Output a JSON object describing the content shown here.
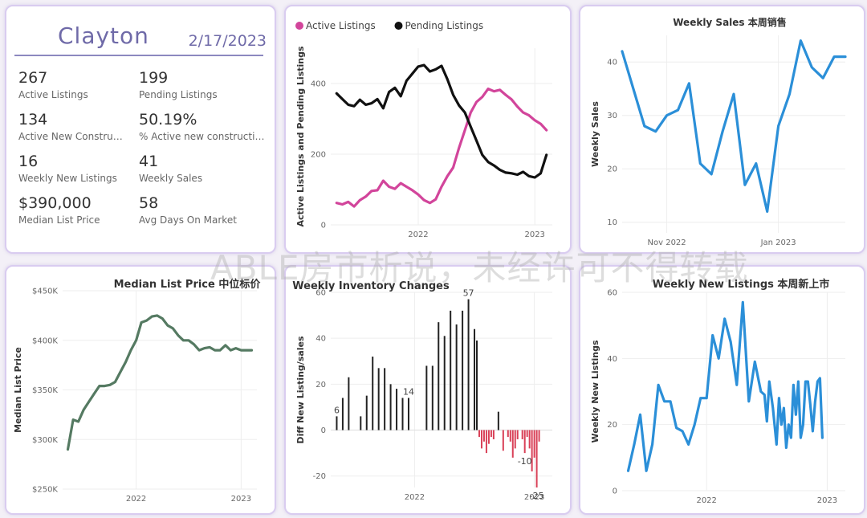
{
  "kpi": {
    "city": "Clayton",
    "date": "2/17/2023",
    "items": [
      {
        "value": "267",
        "label": "Active Listings"
      },
      {
        "value": "199",
        "label": "Pending Listings"
      },
      {
        "value": "134",
        "label": "Active New Construction Listings"
      },
      {
        "value": "50.19%",
        "label": "% Active new constructions"
      },
      {
        "value": "16",
        "label": "Weekly New Listings"
      },
      {
        "value": "41",
        "label": "Weekly Sales"
      },
      {
        "value": "$390,000",
        "label": "Median List Price"
      },
      {
        "value": "58",
        "label": "Avg Days On Market"
      }
    ]
  },
  "watermark": "ABLE房市析说，未经许可不得转载",
  "chart_data": [
    {
      "id": "listings",
      "type": "line",
      "title": "",
      "ylabel": "Active Listings and Pending Listings",
      "ylim": [
        0,
        500
      ],
      "yticks": [
        0,
        200,
        400
      ],
      "xlim": [
        2021.25,
        2023.15
      ],
      "xticks": [
        {
          "v": 2022,
          "label": "2022"
        },
        {
          "v": 2023,
          "label": "2023"
        }
      ],
      "series": [
        {
          "name": "Active Listings",
          "color": "#d2459b",
          "x": [
            2021.3,
            2021.35,
            2021.4,
            2021.45,
            2021.5,
            2021.55,
            2021.6,
            2021.65,
            2021.7,
            2021.75,
            2021.8,
            2021.85,
            2021.9,
            2021.95,
            2022.0,
            2022.05,
            2022.1,
            2022.15,
            2022.2,
            2022.25,
            2022.3,
            2022.35,
            2022.4,
            2022.45,
            2022.5,
            2022.55,
            2022.6,
            2022.65,
            2022.7,
            2022.75,
            2022.8,
            2022.85,
            2022.9,
            2022.95,
            2023.0,
            2023.05,
            2023.1
          ],
          "y": [
            62,
            58,
            65,
            52,
            70,
            80,
            96,
            98,
            125,
            108,
            102,
            118,
            108,
            98,
            86,
            70,
            62,
            72,
            108,
            138,
            162,
            218,
            268,
            318,
            348,
            362,
            385,
            378,
            382,
            368,
            355,
            335,
            318,
            310,
            296,
            286,
            268
          ]
        },
        {
          "name": "Pending Listings",
          "color": "#111111",
          "x": [
            2021.3,
            2021.35,
            2021.4,
            2021.45,
            2021.5,
            2021.55,
            2021.6,
            2021.65,
            2021.7,
            2021.75,
            2021.8,
            2021.85,
            2021.9,
            2021.95,
            2022.0,
            2022.05,
            2022.1,
            2022.15,
            2022.2,
            2022.25,
            2022.3,
            2022.35,
            2022.4,
            2022.45,
            2022.5,
            2022.55,
            2022.6,
            2022.65,
            2022.7,
            2022.75,
            2022.8,
            2022.85,
            2022.9,
            2022.95,
            2023.0,
            2023.05,
            2023.1
          ],
          "y": [
            372,
            356,
            340,
            336,
            354,
            340,
            344,
            356,
            330,
            376,
            388,
            364,
            408,
            428,
            448,
            452,
            434,
            440,
            450,
            412,
            368,
            338,
            318,
            278,
            238,
            198,
            178,
            168,
            156,
            148,
            146,
            142,
            150,
            138,
            134,
            146,
            198
          ]
        }
      ]
    },
    {
      "id": "sales",
      "type": "line",
      "title": "Weekly Sales 本周销售",
      "ylabel": "Weekly Sales",
      "ylim": [
        8,
        45
      ],
      "yticks": [
        10,
        20,
        30,
        40
      ],
      "xlim": [
        0,
        20
      ],
      "xticks": [
        {
          "v": 4,
          "label": "Nov 2022"
        },
        {
          "v": 14,
          "label": "Jan 2023"
        }
      ],
      "series": [
        {
          "name": "Weekly Sales",
          "color": "#2b8fd8",
          "x": [
            0,
            1,
            2,
            3,
            4,
            5,
            6,
            7,
            8,
            9,
            10,
            11,
            12,
            13,
            14,
            15,
            16,
            17,
            18,
            19,
            20
          ],
          "y": [
            42,
            35,
            28,
            27,
            30,
            31,
            36,
            21,
            19,
            27,
            34,
            17,
            21,
            12,
            28,
            34,
            44,
            39,
            37,
            41,
            41
          ]
        }
      ]
    },
    {
      "id": "median",
      "type": "line",
      "title": "Median List Price  中位标价",
      "ylabel": "Median List Price",
      "ylim": [
        250000,
        450000
      ],
      "yticks": [
        {
          "v": 250000,
          "label": "$250K"
        },
        {
          "v": 300000,
          "label": "$300K"
        },
        {
          "v": 350000,
          "label": "$350K"
        },
        {
          "v": 400000,
          "label": "$400K"
        },
        {
          "v": 450000,
          "label": "$450K"
        }
      ],
      "xlim": [
        2021.3,
        2023.15
      ],
      "xticks": [
        {
          "v": 2022,
          "label": "2022"
        },
        {
          "v": 2023,
          "label": "2023"
        }
      ],
      "series": [
        {
          "name": "Median List Price",
          "color": "#557a62",
          "x": [
            2021.35,
            2021.4,
            2021.45,
            2021.5,
            2021.55,
            2021.6,
            2021.65,
            2021.7,
            2021.75,
            2021.8,
            2021.85,
            2021.9,
            2021.95,
            2022.0,
            2022.05,
            2022.1,
            2022.15,
            2022.2,
            2022.25,
            2022.3,
            2022.35,
            2022.4,
            2022.45,
            2022.5,
            2022.55,
            2022.6,
            2022.65,
            2022.7,
            2022.75,
            2022.8,
            2022.85,
            2022.9,
            2022.95,
            2023.0,
            2023.05,
            2023.1
          ],
          "y": [
            290000,
            320000,
            318000,
            330000,
            338000,
            346000,
            354000,
            354000,
            355000,
            358000,
            368000,
            378000,
            390000,
            400000,
            418000,
            420000,
            424000,
            425000,
            422000,
            415000,
            412000,
            405000,
            400000,
            400000,
            396000,
            390000,
            392000,
            393000,
            390000,
            390000,
            395000,
            390000,
            392000,
            390000,
            390000,
            390000
          ]
        }
      ]
    },
    {
      "id": "inventory",
      "type": "bar",
      "title": "Weekly Inventory Changes",
      "ylabel": "Diff New Listing/sales",
      "ylim": [
        -25,
        60
      ],
      "yticks": [
        -20,
        0,
        20,
        40,
        60
      ],
      "xlim": [
        2021.3,
        2023.15
      ],
      "xticks": [
        {
          "v": 2022,
          "label": "2022"
        },
        {
          "v": 2023,
          "label": "2023"
        }
      ],
      "posColor": "#222222",
      "negColor": "#d94158",
      "x": [
        2021.35,
        2021.4,
        2021.45,
        2021.55,
        2021.6,
        2021.65,
        2021.7,
        2021.75,
        2021.8,
        2021.85,
        2021.9,
        2021.95,
        2022.1,
        2022.15,
        2022.2,
        2022.25,
        2022.3,
        2022.35,
        2022.4,
        2022.45,
        2022.5,
        2022.52,
        2022.54,
        2022.56,
        2022.58,
        2022.6,
        2022.62,
        2022.64,
        2022.66,
        2022.7,
        2022.74,
        2022.78,
        2022.8,
        2022.82,
        2022.84,
        2022.86,
        2022.9,
        2022.92,
        2022.94,
        2022.96,
        2022.98,
        2023.0,
        2023.02,
        2023.04
      ],
      "y": [
        6,
        14,
        23,
        6,
        15,
        32,
        27,
        27,
        20,
        18,
        14,
        14,
        28,
        28,
        47,
        41,
        52,
        46,
        52,
        57,
        44,
        39,
        -3,
        -8,
        -5,
        -10,
        -6,
        -3,
        -4,
        8,
        -9,
        -3,
        -5,
        -12,
        -8,
        -4,
        -4,
        -10,
        -3,
        -8,
        -18,
        -12,
        -25,
        -5
      ],
      "labels": [
        {
          "x": 2021.35,
          "y": 6,
          "text": "6"
        },
        {
          "x": 2021.95,
          "y": 14,
          "text": "14"
        },
        {
          "x": 2022.45,
          "y": 57,
          "text": "57"
        },
        {
          "x": 2022.92,
          "y": -10,
          "text": "-10"
        },
        {
          "x": 2023.02,
          "y": -25,
          "text": "-25"
        }
      ]
    },
    {
      "id": "newlistings",
      "type": "line",
      "title": "Weekly New Listings  本周新上市",
      "ylabel": "Weekly New Listings",
      "ylim": [
        0,
        60
      ],
      "yticks": [
        0,
        20,
        40,
        60
      ],
      "xlim": [
        2021.3,
        2023.15
      ],
      "xticks": [
        {
          "v": 2022,
          "label": "2022"
        },
        {
          "v": 2023,
          "label": "2023"
        }
      ],
      "series": [
        {
          "name": "Weekly New Listings",
          "color": "#2b8fd8",
          "x": [
            2021.35,
            2021.4,
            2021.45,
            2021.5,
            2021.55,
            2021.6,
            2021.65,
            2021.7,
            2021.75,
            2021.8,
            2021.85,
            2021.9,
            2021.95,
            2022.0,
            2022.05,
            2022.1,
            2022.15,
            2022.2,
            2022.25,
            2022.3,
            2022.35,
            2022.4,
            2022.45,
            2022.48,
            2022.5,
            2022.52,
            2022.55,
            2022.58,
            2022.6,
            2022.62,
            2022.64,
            2022.66,
            2022.68,
            2022.7,
            2022.72,
            2022.74,
            2022.76,
            2022.78,
            2022.8,
            2022.82,
            2022.84,
            2022.86,
            2022.88,
            2022.9,
            2022.92,
            2022.94,
            2022.96
          ],
          "y": [
            6,
            14,
            23,
            6,
            14,
            32,
            27,
            27,
            19,
            18,
            14,
            20,
            28,
            28,
            47,
            40,
            52,
            45,
            32,
            57,
            27,
            39,
            30,
            29,
            21,
            33,
            25,
            14,
            28,
            20,
            25,
            13,
            20,
            16,
            32,
            23,
            33,
            16,
            20,
            33,
            33,
            26,
            18,
            27,
            33,
            34,
            16
          ]
        }
      ]
    }
  ]
}
